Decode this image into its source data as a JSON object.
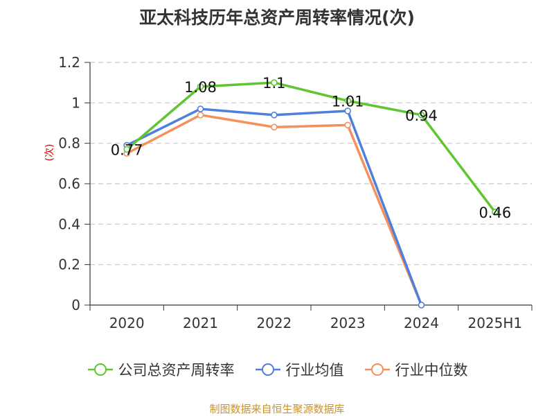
{
  "chart_data": {
    "type": "line",
    "title": "亚太科技历年总资产周转率情况(次)",
    "ylabel": "(次)",
    "xlabel": "",
    "categories": [
      "2020",
      "2021",
      "2022",
      "2023",
      "2024",
      "2025H1"
    ],
    "ylim": [
      0,
      1.2
    ],
    "yticks": [
      "0",
      "0.2",
      "0.4",
      "0.6",
      "0.8",
      "1",
      "1.2"
    ],
    "grid": true,
    "legend_position": "bottom",
    "series": [
      {
        "name": "公司总资产周转率",
        "color": "#5ec62e",
        "values": [
          0.77,
          1.08,
          1.1,
          1.01,
          0.94,
          0.46
        ],
        "labels": [
          "0.77",
          "1.08",
          "1.1",
          "1.01",
          "0.94",
          "0.46"
        ]
      },
      {
        "name": "行业均值",
        "color": "#4f7fdc",
        "values": [
          0.79,
          0.97,
          0.94,
          0.96,
          0.0,
          null
        ]
      },
      {
        "name": "行业中位数",
        "color": "#f58f5c",
        "values": [
          0.75,
          0.94,
          0.88,
          0.89,
          0.0,
          null
        ]
      }
    ]
  },
  "source_note": "制图数据来自恒生聚源数据库"
}
